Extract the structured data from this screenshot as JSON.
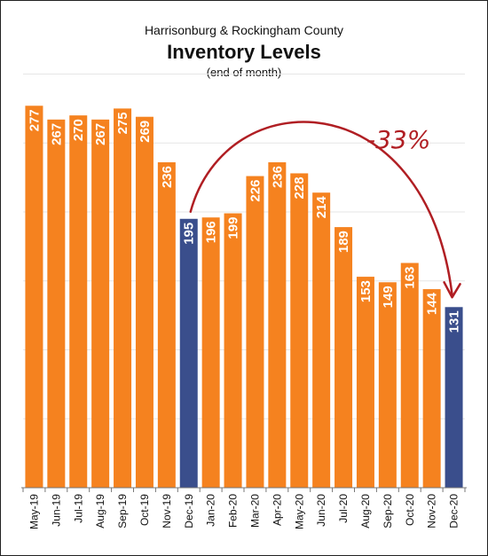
{
  "chart_data": {
    "type": "bar",
    "title": "Inventory Levels",
    "supertitle": "Harrisonburg & Rockingham County",
    "subtitle": "(end of month)",
    "categories": [
      "May-19",
      "Jun-19",
      "Jul-19",
      "Aug-19",
      "Sep-19",
      "Oct-19",
      "Nov-19",
      "Dec-19",
      "Jan-20",
      "Feb-20",
      "Mar-20",
      "Apr-20",
      "May-20",
      "Jun-20",
      "Jul-20",
      "Aug-20",
      "Sep-20",
      "Oct-20",
      "Nov-20",
      "Dec-20"
    ],
    "values": [
      277,
      267,
      270,
      267,
      275,
      269,
      236,
      195,
      196,
      199,
      226,
      236,
      228,
      214,
      189,
      153,
      149,
      163,
      144,
      131
    ],
    "highlight_categories": [
      "Dec-19",
      "Dec-20"
    ],
    "ylim": [
      0,
      300
    ],
    "grid": true,
    "annotation": {
      "text": "-33%",
      "from": "Dec-19",
      "to": "Dec-20"
    },
    "colors": {
      "bar": "#f5821f",
      "highlight": "#3a4e8c",
      "label": "#ffffff",
      "annotation": "#b01e23",
      "grid": "#e6e6e6"
    }
  }
}
